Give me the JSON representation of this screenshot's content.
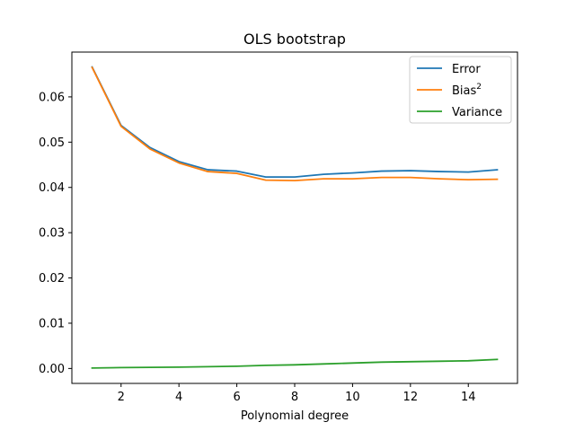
{
  "chart_data": {
    "type": "line",
    "title": "OLS bootstrap",
    "xlabel": "Polynomial degree",
    "ylabel": "",
    "xlim": [
      0.3,
      15.7
    ],
    "ylim": [
      -0.0033,
      0.0699
    ],
    "xticks": [
      2,
      4,
      6,
      8,
      10,
      12,
      14
    ],
    "yticks": [
      0.0,
      0.01,
      0.02,
      0.03,
      0.04,
      0.05,
      0.06
    ],
    "ytick_labels": [
      "0.00",
      "0.01",
      "0.02",
      "0.03",
      "0.04",
      "0.05",
      "0.06"
    ],
    "x": [
      1,
      2,
      3,
      4,
      5,
      6,
      7,
      8,
      9,
      10,
      11,
      12,
      13,
      14,
      15
    ],
    "series": [
      {
        "name": "Error",
        "color": "#1f77b4",
        "values": [
          0.0666,
          0.0537,
          0.0488,
          0.0457,
          0.0439,
          0.0436,
          0.0423,
          0.0423,
          0.0429,
          0.0432,
          0.0436,
          0.0437,
          0.0435,
          0.0434,
          0.0439
        ]
      },
      {
        "name": "Bias",
        "name_sup": "2",
        "color": "#ff7f0e",
        "values": [
          0.0665,
          0.0535,
          0.0485,
          0.0454,
          0.0435,
          0.0431,
          0.0416,
          0.0415,
          0.0419,
          0.0419,
          0.0422,
          0.0422,
          0.0419,
          0.0417,
          0.0418
        ]
      },
      {
        "name": "Variance",
        "color": "#2ca02c",
        "values": [
          0.0001,
          0.0002,
          0.00025,
          0.0003,
          0.0004,
          0.0005,
          0.0007,
          0.0008,
          0.001,
          0.0012,
          0.0014,
          0.0015,
          0.0016,
          0.0017,
          0.002
        ]
      }
    ],
    "legend_position": "upper-right",
    "grid": false
  }
}
